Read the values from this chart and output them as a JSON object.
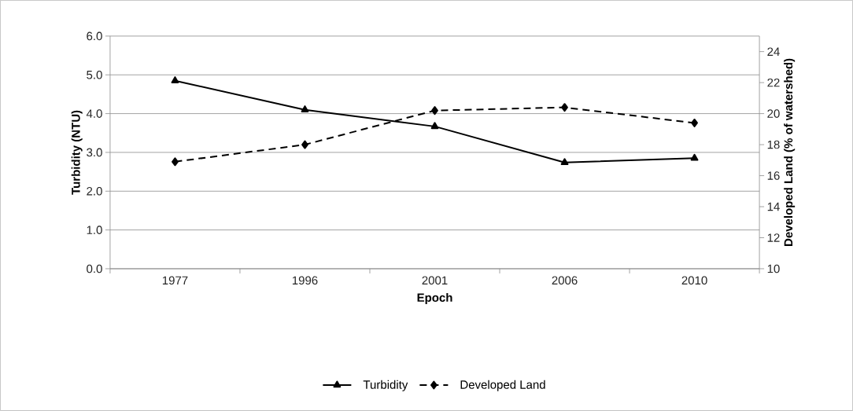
{
  "chart_data": {
    "type": "line",
    "xlabel": "Epoch",
    "ylabel": "Turbidity (NTU)",
    "y2label": "Developed Land (% of watershed)",
    "categories": [
      "1977",
      "1996",
      "2001",
      "2006",
      "2010"
    ],
    "series": [
      {
        "name": "Turbidity",
        "color": "#000000",
        "values": [
          4.85,
          4.1,
          3.67,
          2.74,
          2.85
        ],
        "marker": "triangle",
        "line_style": "solid"
      },
      {
        "name": "Developed Land",
        "color": "#000000",
        "values": [
          16.9,
          18.0,
          20.2,
          20.4,
          19.4
        ],
        "marker": "diamond",
        "line_style": "dashed",
        "axis": "y2"
      }
    ],
    "ylim": [
      0,
      6
    ],
    "yticks": [
      {
        "value": 0,
        "label": "0.0"
      },
      {
        "value": 1,
        "label": "1.0"
      },
      {
        "value": 2,
        "label": "2.0"
      },
      {
        "value": 3,
        "label": "3.0"
      },
      {
        "value": 4,
        "label": "4.0"
      },
      {
        "value": 5,
        "label": "5.0"
      },
      {
        "value": 6,
        "label": "6.0"
      }
    ],
    "y2lim": [
      10,
      25
    ],
    "y2ticks": [
      10,
      12,
      14,
      16,
      18,
      20,
      22,
      24
    ],
    "grid": "y",
    "legend": "bottom"
  }
}
